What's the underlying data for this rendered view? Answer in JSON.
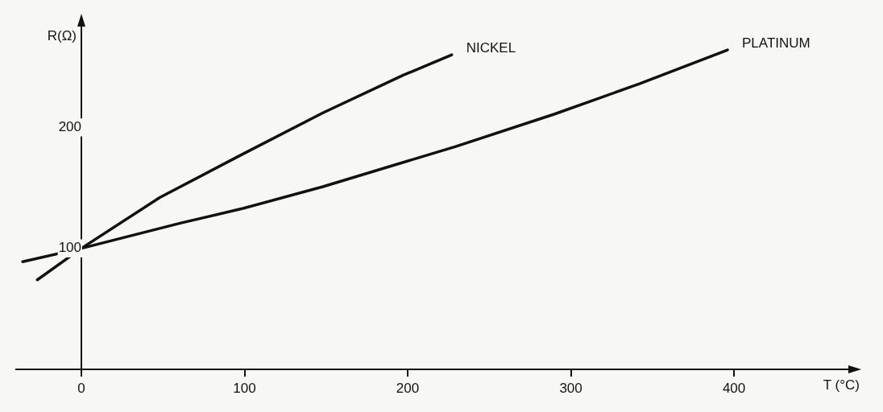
{
  "chart_data": {
    "type": "line",
    "xlabel": "T (°C)",
    "ylabel": "R(Ω)",
    "xlim": [
      -40,
      475
    ],
    "ylim": [
      0,
      290
    ],
    "xticks": [
      0,
      100,
      200,
      300,
      400
    ],
    "yticks": [
      100,
      200
    ],
    "grid": false,
    "legend": false,
    "marker": "none",
    "line_style": "solid",
    "series": [
      {
        "name": "NICKEL",
        "color": "#111111",
        "x": [
          -27,
          0,
          48,
          99,
          148,
          197,
          227
        ],
        "values": [
          74,
          100,
          142,
          178,
          212,
          243,
          260
        ]
      },
      {
        "name": "PLATINUM",
        "color": "#111111",
        "x": [
          -36,
          0,
          61,
          99,
          148,
          229,
          290,
          342,
          396
        ],
        "values": [
          89,
          100,
          121,
          133,
          151,
          184,
          211,
          236,
          264
        ]
      }
    ]
  }
}
